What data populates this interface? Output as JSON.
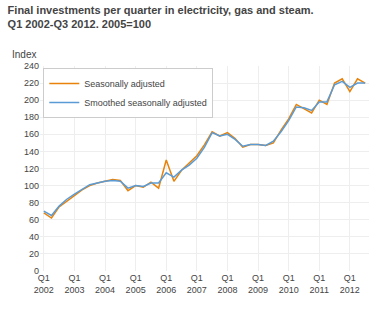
{
  "chart_data": {
    "type": "line",
    "title": "Final investments per quarter in electricity, gas and steam.",
    "subtitle": "Q1 2002-Q3 2012. 2005=100",
    "ylabel": "Index",
    "categories": [
      "Q1\n2002",
      null,
      null,
      null,
      "Q1\n2003",
      null,
      null,
      null,
      "Q1\n2004",
      null,
      null,
      null,
      "Q1\n2005",
      null,
      null,
      null,
      "Q1\n2006",
      null,
      null,
      null,
      "Q1\n2007",
      null,
      null,
      null,
      "Q1\n2008",
      null,
      null,
      null,
      "Q1\n2009",
      null,
      null,
      null,
      "Q1\n2010",
      null,
      null,
      null,
      "Q1\n2011",
      null,
      null,
      null,
      "Q1\n2012",
      null,
      null
    ],
    "series": [
      {
        "name": "Seasonally adjusted",
        "color": "#E8820A",
        "values": [
          68,
          62,
          75,
          82,
          88,
          95,
          100,
          103,
          105,
          107,
          106,
          94,
          100,
          98,
          104,
          97,
          130,
          105,
          118,
          126,
          135,
          148,
          163,
          158,
          162,
          155,
          145,
          148,
          148,
          147,
          150,
          165,
          178,
          195,
          190,
          185,
          200,
          195,
          220,
          225,
          210,
          225,
          220
        ]
      },
      {
        "name": "Smoothed seasonally adjusted",
        "color": "#5B9BD5",
        "values": [
          70,
          65,
          76,
          84,
          90,
          96,
          101,
          103,
          105,
          106,
          105,
          97,
          100,
          99,
          103,
          103,
          115,
          110,
          118,
          124,
          132,
          145,
          162,
          158,
          160,
          154,
          146,
          148,
          148,
          147,
          152,
          163,
          176,
          192,
          191,
          188,
          198,
          198,
          218,
          222,
          215,
          220,
          220
        ]
      }
    ],
    "ylim": [
      0,
      240
    ],
    "yticks": [
      0,
      20,
      40,
      60,
      80,
      100,
      120,
      140,
      160,
      180,
      200,
      220,
      240
    ],
    "grid": true,
    "legend": "upper left"
  }
}
